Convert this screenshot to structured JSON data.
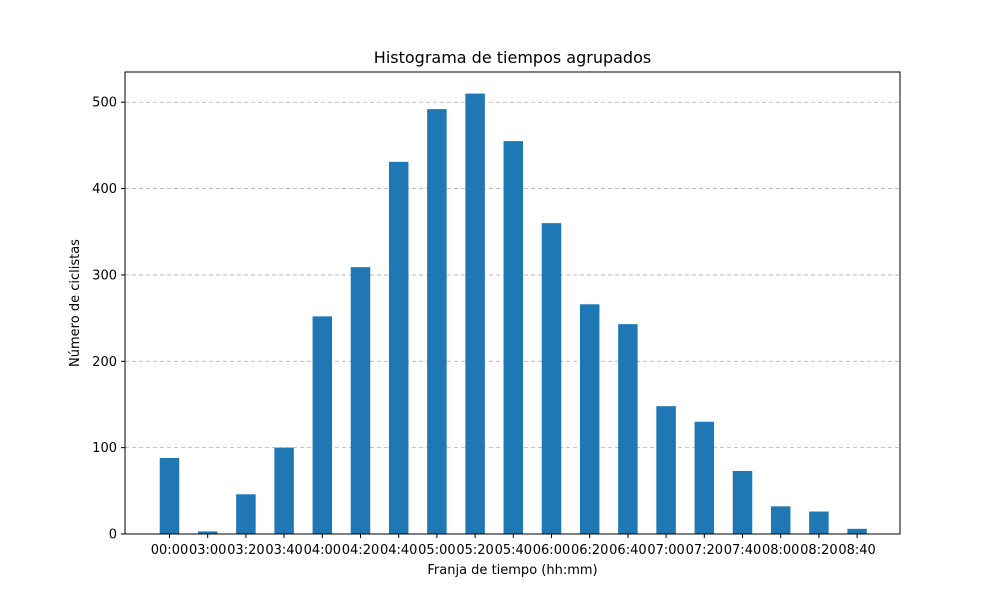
{
  "chart_data": {
    "type": "bar",
    "title": "Histograma de tiempos agrupados",
    "xlabel": "Franja de tiempo (hh:mm)",
    "ylabel": "Número de ciclistas",
    "categories": [
      "00:00",
      "03:00",
      "03:20",
      "03:40",
      "04:00",
      "04:20",
      "04:40",
      "05:00",
      "05:20",
      "05:40",
      "06:00",
      "06:20",
      "06:40",
      "07:00",
      "07:20",
      "07:40",
      "08:00",
      "08:20",
      "08:40"
    ],
    "values": [
      88,
      3,
      46,
      100,
      252,
      309,
      431,
      492,
      510,
      455,
      360,
      266,
      243,
      148,
      130,
      73,
      32,
      26,
      6
    ],
    "ylim": [
      0,
      535
    ],
    "yticks": [
      0,
      100,
      200,
      300,
      400,
      500
    ],
    "grid": "y-dashed",
    "bar_color": "#1f77b4"
  }
}
